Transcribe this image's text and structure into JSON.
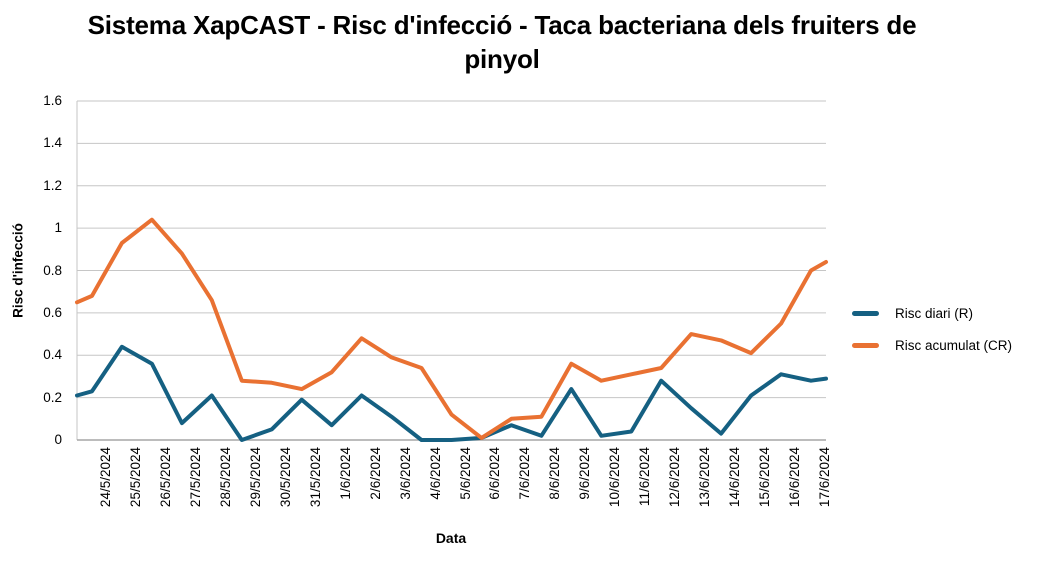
{
  "title": "Sistema XapCAST - Risc d'infecció - Taca bacteriana dels fruiters de pinyol",
  "legend": {
    "items": [
      {
        "label": "Risc diari (R)",
        "color": "#156082"
      },
      {
        "label": "Risc acumulat (CR)",
        "color": "#E97132"
      }
    ]
  },
  "colors": {
    "series_daily": "#156082",
    "series_accumulated": "#E97132",
    "gridline": "#c6c6c6",
    "axis_line": "#a6a6a6",
    "text": "#000000",
    "background": "#ffffff"
  },
  "chart_data": {
    "type": "line",
    "title": "Sistema XapCAST - Risc d'infecció - Taca bacteriana dels fruiters de pinyol",
    "xlabel": "Data",
    "ylabel": "Risc d'infecció",
    "ylim": [
      0,
      1.6
    ],
    "y_tick_labels": [
      "0",
      "0.2",
      "0.4",
      "0.6",
      "0.8",
      "1",
      "1.2",
      "1.4",
      "1.6"
    ],
    "grid": true,
    "legend_position": "right",
    "categories": [
      "24/5/2024",
      "25/5/2024",
      "26/5/2024",
      "27/5/2024",
      "28/5/2024",
      "29/5/2024",
      "30/5/2024",
      "31/5/2024",
      "1/6/2024",
      "2/6/2024",
      "3/6/2024",
      "4/6/2024",
      "5/6/2024",
      "6/6/2024",
      "7/6/2024",
      "8/6/2024",
      "9/6/2024",
      "10/6/2024",
      "11/6/2024",
      "12/6/2024",
      "13/6/2024",
      "14/6/2024",
      "15/6/2024",
      "16/6/2024",
      "17/6/2024"
    ],
    "series": [
      {
        "name": "Risc diari (R)",
        "color": "#156082",
        "values": [
          0.23,
          0.44,
          0.36,
          0.08,
          0.21,
          0.0,
          0.05,
          0.19,
          0.07,
          0.21,
          0.11,
          0.0,
          0.0,
          0.01,
          0.07,
          0.02,
          0.24,
          0.02,
          0.04,
          0.28,
          0.15,
          0.03,
          0.21,
          0.31,
          0.28
        ],
        "edge_left": 0.21,
        "edge_right": 0.29
      },
      {
        "name": "Risc acumulat (CR)",
        "color": "#E97132",
        "values": [
          0.68,
          0.93,
          1.04,
          0.88,
          0.66,
          0.28,
          0.27,
          0.24,
          0.32,
          0.48,
          0.39,
          0.34,
          0.12,
          0.01,
          0.1,
          0.11,
          0.36,
          0.28,
          0.31,
          0.34,
          0.5,
          0.47,
          0.41,
          0.55,
          0.8
        ],
        "edge_left": 0.65,
        "edge_right": 0.84
      }
    ]
  }
}
